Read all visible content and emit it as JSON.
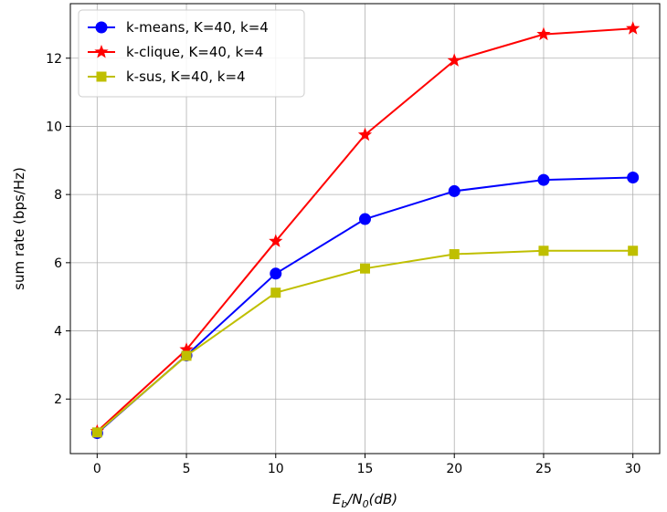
{
  "chart_data": {
    "type": "line",
    "x": [
      0,
      5,
      10,
      15,
      20,
      25,
      30
    ],
    "series": [
      {
        "name": "k-means, K=40, k=4",
        "values": [
          1.0,
          3.28,
          5.68,
          7.28,
          8.1,
          8.43,
          8.5
        ],
        "color": "#0000ff",
        "marker": "circle"
      },
      {
        "name": "k-clique, K=40, k=4",
        "values": [
          1.05,
          3.45,
          6.63,
          9.75,
          11.93,
          12.7,
          12.87
        ],
        "color": "#ff0000",
        "marker": "star"
      },
      {
        "name": "k-sus, K=40, k=4",
        "values": [
          1.02,
          3.27,
          5.12,
          5.83,
          6.25,
          6.35,
          6.35
        ],
        "color": "#bfbf00",
        "marker": "square"
      }
    ],
    "xlabel_main": "E",
    "xlabel_sub1": "b",
    "xlabel_mid": "/N",
    "xlabel_sub2": "0",
    "xlabel_tail": "(dB)",
    "ylabel": "sum rate (bps/Hz)",
    "xlim": [
      -1.5,
      31.5
    ],
    "ylim": [
      0.4,
      13.6
    ],
    "xticks": [
      0,
      5,
      10,
      15,
      20,
      25,
      30
    ],
    "yticks": [
      2,
      4,
      6,
      8,
      10,
      12
    ],
    "grid": true,
    "legend_position": "top-left"
  }
}
